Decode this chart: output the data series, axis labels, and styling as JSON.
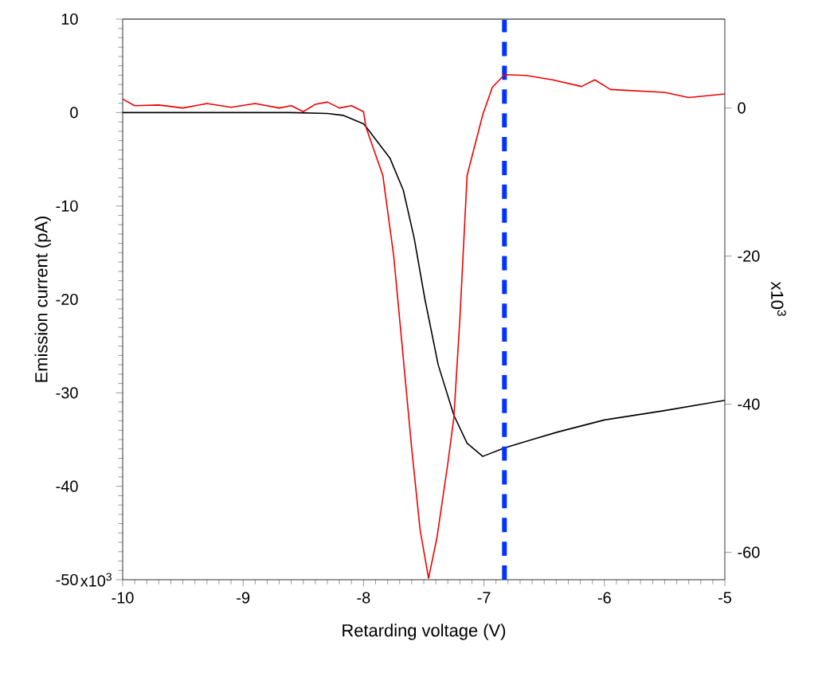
{
  "chart_data": {
    "type": "line",
    "xlabel": "Retarding voltage (V)",
    "ylabel": "Emission current (pA)",
    "y2label": "x10$^{3}$",
    "annotations": [
      "x10$^{3}$"
    ],
    "xlim": [
      -10,
      -5
    ],
    "xticks": [
      -10,
      -9,
      -8,
      -7,
      -6,
      -5
    ],
    "ylim": [
      -50,
      10
    ],
    "yticks": [
      10,
      0,
      -10,
      -20,
      -30,
      -40,
      -50
    ],
    "y2lim": [
      -63.7,
      12
    ],
    "y2ticks": [
      0,
      -20,
      -40,
      -60
    ],
    "marker": "none",
    "line_style": "solid",
    "series": [
      {
        "color": "#000000",
        "x": [
          -10,
          -9,
          -8.6,
          -8.3,
          -8.17,
          -8.0,
          -7.98,
          -7.78,
          -7.67,
          -7.58,
          -7.49,
          -7.38,
          -7.25,
          -7.14,
          -7.01,
          -6.83,
          -6.6,
          -6.39,
          -6.0,
          -5.5,
          -5
        ],
        "values": [
          0,
          0,
          0,
          -0.1,
          -0.3,
          -1.2,
          -1.5,
          -4.9,
          -8.3,
          -13.4,
          -20,
          -27,
          -32.4,
          -35.4,
          -36.8,
          -35.9,
          -35.0,
          -34.2,
          -32.9,
          -31.9,
          -30.8
        ]
      },
      {
        "color": "#ee0000",
        "axis": "y2",
        "x": [
          -10,
          -9.9,
          -9.7,
          -9.5,
          -9.3,
          -9.1,
          -8.9,
          -8.7,
          -8.6,
          -8.5,
          -8.4,
          -8.3,
          -8.2,
          -8.1,
          -8.0,
          -7.98,
          -7.84,
          -7.75,
          -7.68,
          -7.6,
          -7.53,
          -7.46,
          -7.39,
          -7.3,
          -7.25,
          -7.2,
          -7.14,
          -7.01,
          -6.93,
          -6.83,
          -6.65,
          -6.43,
          -6.19,
          -6.08,
          -5.95,
          -5.5,
          -5.3,
          -5
        ],
        "values": [
          1.2,
          0.3,
          0.4,
          0.0,
          0.6,
          0.1,
          0.6,
          0.0,
          0.3,
          -0.5,
          0.5,
          0.8,
          0.0,
          0.3,
          -0.5,
          -2.6,
          -9.1,
          -19.9,
          -32,
          -46,
          -57,
          -63.5,
          -58,
          -48,
          -41.8,
          -28.5,
          -9.1,
          -0.9,
          2.8,
          4.5,
          4.4,
          3.8,
          2.9,
          3.8,
          2.5,
          2.1,
          1.4,
          1.9
        ]
      }
    ],
    "ref_lines": [
      {
        "axis": "x",
        "value": -6.83,
        "color": "#0033ff",
        "line_style": "dashed"
      }
    ]
  }
}
